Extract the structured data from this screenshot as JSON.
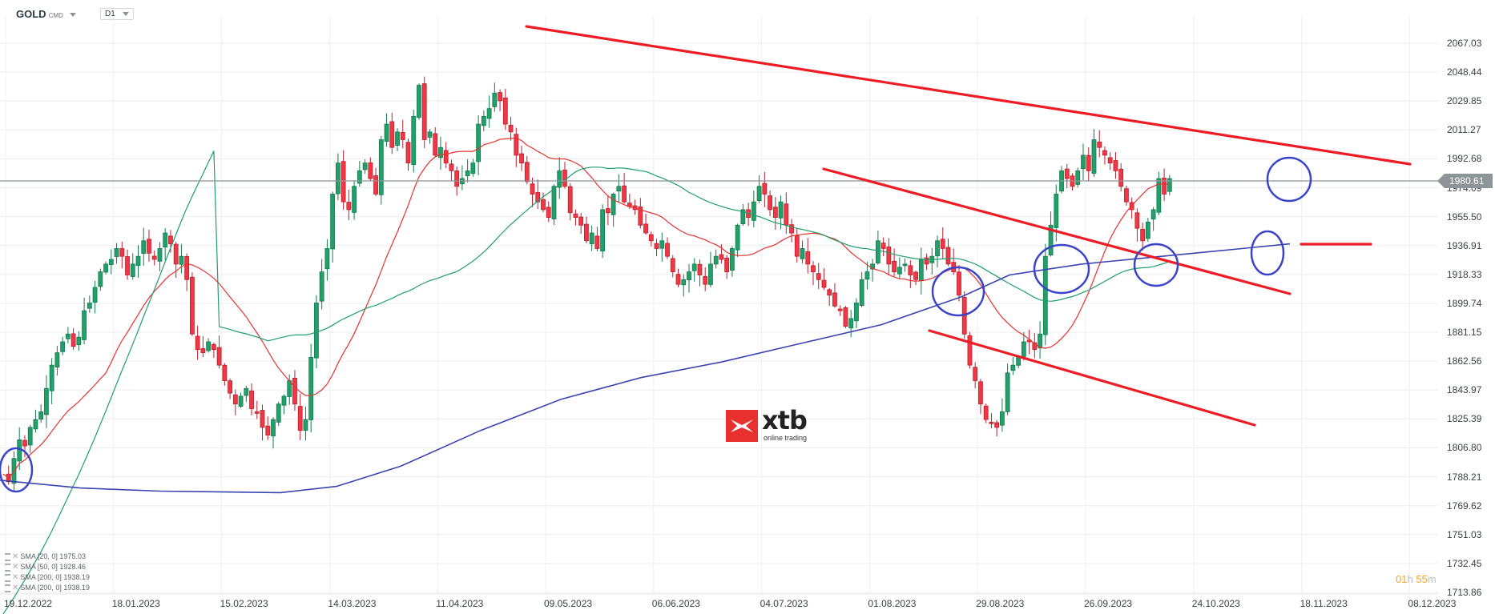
{
  "header": {
    "symbol": "GOLD",
    "symbol_type": "CMD",
    "timeframe": "D1"
  },
  "colors": {
    "bull": "#22a06b",
    "bear": "#f23645",
    "sma20": "#e8312f",
    "sma50": "#1f9e6e",
    "sma200": "#3b43b0",
    "trendline": "#ee1c25",
    "circle": "#3a44c9",
    "price_line": "#8e9599"
  },
  "current_price": "1980.61",
  "countdown": {
    "h": "01",
    "h_unit": "h",
    "m": "55",
    "m_unit": "m"
  },
  "logo": {
    "brand": "xtb",
    "tagline": "online trading"
  },
  "legend": [
    {
      "label": "SMA [20,  0] 1975.03"
    },
    {
      "label": "SMA [50,  0] 1928.46"
    },
    {
      "label": "SMA [200,  0] 1938.19"
    },
    {
      "label": "SMA [200,  0] 1938.19"
    }
  ],
  "chart_data": {
    "type": "candlestick",
    "title": "GOLD CMD D1",
    "xlabel": "",
    "ylabel": "",
    "ylim": [
      1713.86,
      2067.03
    ],
    "y_ticks": [
      "2067.03",
      "2048.44",
      "2029.85",
      "2011.27",
      "1992.68",
      "1974.09",
      "1955.50",
      "1936.91",
      "1918.33",
      "1899.74",
      "1881.15",
      "1862.56",
      "1843.97",
      "1825.39",
      "1806.80",
      "1788.21",
      "1769.62",
      "1751.03",
      "1732.45",
      "1713.86"
    ],
    "x_ticks": [
      "19.12.2022",
      "18.01.2023",
      "15.02.2023",
      "14.03.2023",
      "11.04.2023",
      "09.05.2023",
      "06.06.2023",
      "04.07.2023",
      "01.08.2023",
      "29.08.2023",
      "26.09.2023",
      "24.10.2023",
      "18.11.2023",
      "08.12.2023"
    ],
    "grid": true,
    "last_price": 1980.61,
    "indicators": [
      {
        "name": "SMA 20",
        "last": 1975.03
      },
      {
        "name": "SMA 50",
        "last": 1928.46
      },
      {
        "name": "SMA 200",
        "last": 1938.19
      },
      {
        "name": "SMA 200",
        "last": 1938.19
      }
    ],
    "close_series_approx": [
      1790,
      1785,
      1800,
      1812,
      1808,
      1820,
      1825,
      1830,
      1845,
      1860,
      1868,
      1875,
      1880,
      1872,
      1878,
      1895,
      1900,
      1910,
      1920,
      1925,
      1928,
      1935,
      1930,
      1918,
      1925,
      1930,
      1940,
      1932,
      1928,
      1935,
      1945,
      1938,
      1925,
      1930,
      1915,
      1880,
      1870,
      1868,
      1875,
      1870,
      1860,
      1850,
      1842,
      1835,
      1840,
      1845,
      1832,
      1830,
      1820,
      1815,
      1825,
      1835,
      1840,
      1850,
      1835,
      1818,
      1825,
      1865,
      1900,
      1920,
      1935,
      1970,
      1990,
      1965,
      1960,
      1975,
      1985,
      1990,
      1980,
      1970,
      2005,
      2015,
      2000,
      2010,
      2005,
      1990,
      2020,
      2040,
      2005,
      2010,
      1995,
      2000,
      1990,
      1985,
      1975,
      1980,
      1985,
      1990,
      2015,
      2020,
      2025,
      2035,
      2030,
      2015,
      2010,
      1995,
      1990,
      1978,
      1970,
      1965,
      1960,
      1955,
      1975,
      1985,
      1975,
      1958,
      1955,
      1950,
      1940,
      1945,
      1935,
      1960,
      1958,
      1970,
      1975,
      1965,
      1962,
      1960,
      1950,
      1945,
      1940,
      1935,
      1940,
      1930,
      1920,
      1912,
      1915,
      1920,
      1925,
      1918,
      1912,
      1925,
      1930,
      1928,
      1920,
      1935,
      1950,
      1960,
      1955,
      1965,
      1975,
      1970,
      1960,
      1955,
      1965,
      1950,
      1945,
      1930,
      1935,
      1925,
      1920,
      1915,
      1910,
      1905,
      1898,
      1895,
      1885,
      1890,
      1900,
      1915,
      1920,
      1925,
      1940,
      1935,
      1925,
      1920,
      1923,
      1925,
      1918,
      1915,
      1928,
      1925,
      1930,
      1940,
      1935,
      1925,
      1920,
      1905,
      1880,
      1860,
      1850,
      1835,
      1825,
      1823,
      1820,
      1830,
      1855,
      1860,
      1865,
      1875,
      1875,
      1870,
      1880,
      1930,
      1950,
      1970,
      1985,
      1980,
      1975,
      1985,
      1995,
      1985,
      2005,
      2000,
      1995,
      1990,
      1985,
      1975,
      1965,
      1960,
      1948,
      1940,
      1952,
      1960,
      1980,
      1970,
      1980
    ]
  }
}
